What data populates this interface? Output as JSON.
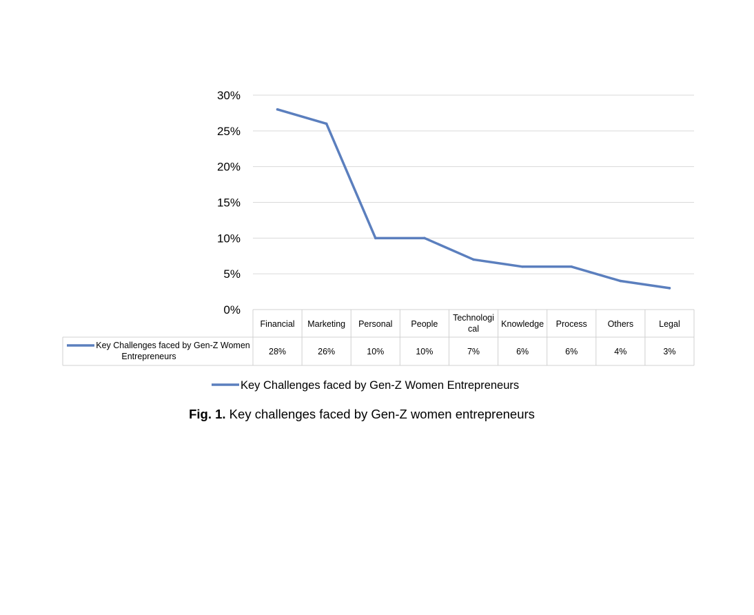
{
  "chart_data": {
    "type": "line",
    "categories": [
      "Financial",
      "Marketing",
      "Personal",
      "People",
      "Technological",
      "Knowledge",
      "Process",
      "Others",
      "Legal"
    ],
    "category_display": [
      "Financial",
      "Marketing",
      "Personal",
      "People",
      [
        "Technologi",
        "cal"
      ],
      "Knowledge",
      "Process",
      "Others",
      "Legal"
    ],
    "series": [
      {
        "name": "Key Challenges faced by Gen-Z Women Entrepreneurs",
        "table_label": [
          "Key Challenges faced by Gen-Z Women",
          "Entrepreneurs"
        ],
        "values": [
          28,
          26,
          10,
          10,
          7,
          6,
          6,
          4,
          3
        ],
        "value_labels": [
          "28%",
          "26%",
          "10%",
          "10%",
          "7%",
          "6%",
          "6%",
          "4%",
          "3%"
        ],
        "color": "#5b7fbe"
      }
    ],
    "ylim": [
      0,
      30
    ],
    "yticks": [
      0,
      5,
      10,
      15,
      20,
      25,
      30
    ],
    "ytick_labels": [
      "0%",
      "5%",
      "10%",
      "15%",
      "20%",
      "25%",
      "30%"
    ],
    "grid": true,
    "data_table": true,
    "legend_position": "bottom"
  },
  "caption": {
    "label": "Fig. 1.",
    "text": " Key challenges faced by Gen-Z women entrepreneurs"
  }
}
